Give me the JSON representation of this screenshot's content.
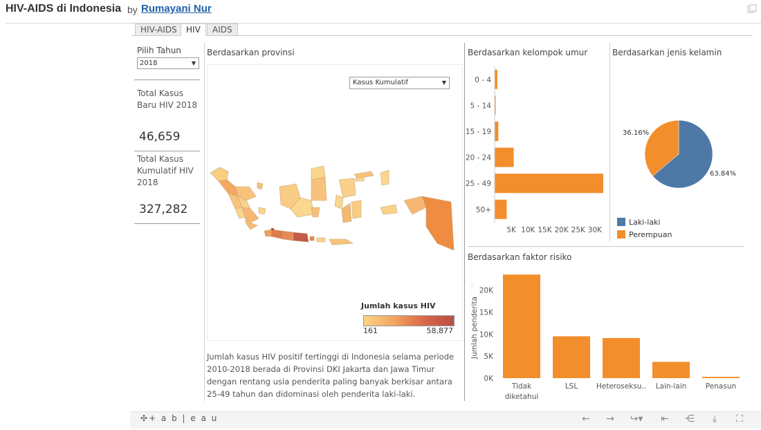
{
  "header": {
    "title": "HIV-AIDS di Indonesia",
    "by": "by",
    "author": "Rumayani Nur"
  },
  "tabs": [
    {
      "label": "HIV-AIDS",
      "active": false
    },
    {
      "label": "HIV",
      "active": true
    },
    {
      "label": "AIDS",
      "active": false
    }
  ],
  "filter": {
    "label": "Pilih Tahun",
    "value": "2018"
  },
  "kpis": {
    "new_label": "Total Kasus Baru HIV 2018",
    "new_value": "46,659",
    "cum_label": "Total Kasus Kumulatif HIV 2018",
    "cum_value": "327,282"
  },
  "map": {
    "title": "Berdasarkan provinsi",
    "measure_select": "Kasus Kumulatif",
    "legend_title": "Jumlah kasus HIV",
    "legend_min": "161",
    "legend_max": "58,877",
    "description": "Jumlah kasus HIV positif tertinggi di Indonesia selama periode 2010-2018 berada di Provinsi DKI Jakarta dan Jawa Timur dengan rentang usia penderita paling banyak berkisar antara 25-49 tahun dan didominasi oleh penderita laki-laki."
  },
  "colors": {
    "orange": "#f28e2b",
    "blue": "#4e79a7",
    "map_low": "#fbd486",
    "map_high": "#b84f45",
    "link": "#1f5fa8"
  },
  "chart_data": [
    {
      "type": "bar",
      "orientation": "horizontal",
      "title": "Berdasarkan kelompok umur",
      "categories": [
        "0 - 4",
        "5 - 14",
        "15 - 19",
        "20 - 24",
        "25 - 49",
        "50+"
      ],
      "values": [
        800,
        250,
        1100,
        5700,
        32500,
        3600
      ],
      "xticks": [
        "5K",
        "10K",
        "15K",
        "20K",
        "25K",
        "30K"
      ],
      "xlim": [
        0,
        32500
      ]
    },
    {
      "type": "pie",
      "title": "Berdasarkan jenis kelamin",
      "categories": [
        "Laki-laki",
        "Perempuan"
      ],
      "values": [
        63.84,
        36.16
      ],
      "value_labels": [
        "63.84%",
        "36.16%"
      ],
      "colors": [
        "#4e79a7",
        "#f28e2b"
      ]
    },
    {
      "type": "bar",
      "title": "Berdasarkan faktor risiko",
      "categories": [
        "Tidak diketahui",
        "LSL",
        "Heteroseksu..",
        "Lain-lain",
        "Penasun"
      ],
      "values": [
        23500,
        9500,
        9100,
        3700,
        300
      ],
      "ylabel": "Jumlah penderita",
      "yticks": [
        "0K",
        "5K",
        "10K",
        "15K",
        "20K"
      ],
      "ylim": [
        0,
        24000
      ]
    }
  ],
  "age_chart": {
    "title": "Berdasarkan kelompok umur",
    "ticks": [
      "5K",
      "10K",
      "15K",
      "20K",
      "25K",
      "30K"
    ]
  },
  "sex_chart": {
    "title": "Berdasarkan jenis kelamin",
    "male_pct": "63.84%",
    "female_pct": "36.16%",
    "legend": [
      "Laki-laki",
      "Perempuan"
    ]
  },
  "risk_chart": {
    "title": "Berdasarkan faktor risiko",
    "ylabel": "Jumlah penderita"
  },
  "toolbar": {
    "logo": "+ a b | e a u",
    "buttons": [
      "undo-icon",
      "redo-icon",
      "revert-icon",
      "reset-icon",
      "share-icon",
      "download-icon",
      "fullscreen-icon"
    ]
  }
}
